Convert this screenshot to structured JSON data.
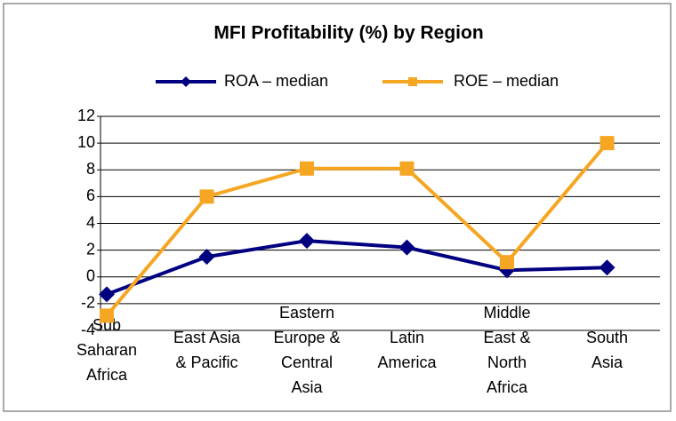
{
  "chart_data": {
    "type": "line",
    "title": "MFI Profitability (%) by Region",
    "categories": [
      "Sub\nSaharan\nAfrica",
      "East Asia\n& Pacific",
      "Eastern\nEurope &\nCentral\nAsia",
      "Latin\nAmerica",
      "Middle\nEast &\nNorth\nAfrica",
      "South\nAsia"
    ],
    "series": [
      {
        "name": "ROA – median",
        "color": "#000080",
        "marker": "diamond",
        "values": [
          -1.3,
          1.5,
          2.7,
          2.2,
          0.5,
          0.7
        ]
      },
      {
        "name": "ROE – median",
        "color": "#f5a623",
        "marker": "square",
        "values": [
          -2.9,
          6.0,
          8.1,
          8.1,
          1.1,
          10.0
        ]
      }
    ],
    "ylim": [
      -4,
      12
    ],
    "yticks": [
      -4,
      -2,
      0,
      2,
      4,
      6,
      8,
      10,
      12
    ],
    "grid": true,
    "legend": "top"
  }
}
